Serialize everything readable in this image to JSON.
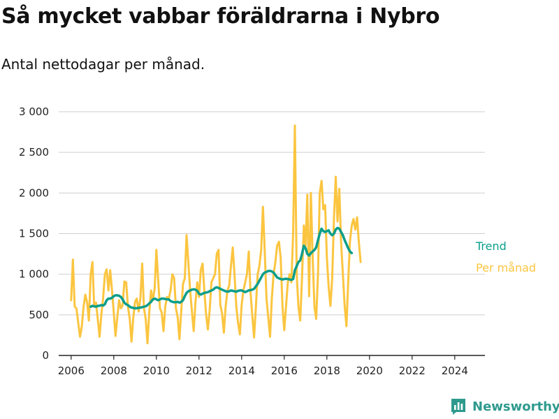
{
  "title": "Så mycket vabbar föräldrarna i Nybro",
  "subtitle": "Antal nettodagar per månad.",
  "brand": {
    "name": "Newsworthy",
    "icon": "newsworthy-logo-icon",
    "color": "#2e9a8e"
  },
  "chart_data": {
    "type": "line",
    "x_start": "2006-01",
    "x_step": "month",
    "xlim": [
      "2005-06",
      "2025-06"
    ],
    "xticks": [
      "2006",
      "2008",
      "2010",
      "2012",
      "2014",
      "2016",
      "2018",
      "2020",
      "2022",
      "2024"
    ],
    "ylim": [
      0,
      3000
    ],
    "yticks": [
      "0",
      "500",
      "1 000",
      "1 500",
      "2 000",
      "2 500",
      "3 000"
    ],
    "ytick_values": [
      0,
      500,
      1000,
      1500,
      2000,
      2500,
      3000
    ],
    "grid": "horizontal",
    "legend": "right",
    "series": [
      {
        "name": "Per månad",
        "color": "#fbc540",
        "start": "2006-01",
        "values": [
          680,
          1180,
          600,
          580,
          400,
          230,
          350,
          600,
          750,
          650,
          430,
          1000,
          1150,
          600,
          650,
          450,
          230,
          500,
          700,
          1000,
          1060,
          800,
          1050,
          800,
          530,
          240,
          470,
          680,
          580,
          620,
          910,
          900,
          600,
          450,
          170,
          470,
          660,
          700,
          540,
          700,
          1130,
          580,
          450,
          150,
          530,
          800,
          680,
          820,
          1300,
          940,
          580,
          530,
          300,
          600,
          720,
          700,
          800,
          1000,
          950,
          580,
          470,
          200,
          550,
          880,
          950,
          1480,
          1150,
          800,
          550,
          300,
          650,
          900,
          720,
          1050,
          1130,
          800,
          500,
          320,
          550,
          900,
          950,
          1000,
          1250,
          1300,
          620,
          520,
          280,
          600,
          800,
          860,
          1100,
          1330,
          1000,
          600,
          400,
          260,
          620,
          800,
          900,
          1000,
          1280,
          780,
          500,
          220,
          580,
          1000,
          1100,
          1300,
          1830,
          1300,
          700,
          470,
          230,
          700,
          1000,
          1150,
          1350,
          1400,
          1200,
          600,
          310,
          600,
          900,
          1000,
          900,
          1500,
          2830,
          1000,
          600,
          430,
          950,
          1600,
          1350,
          1980,
          730,
          2000,
          1200,
          600,
          450,
          1000,
          2000,
          2150,
          1800,
          1850,
          1200,
          850,
          610,
          950,
          1700,
          2200,
          1650,
          2050,
          1400,
          1000,
          620,
          360,
          900,
          1400,
          1600,
          1680,
          1550,
          1700,
          1400,
          1150
        ]
      },
      {
        "name": "Trend",
        "color": "#0b9e8a",
        "start": "2006-12",
        "values": [
          600,
          610,
          605,
          600,
          610,
          612,
          620,
          615,
          630,
          680,
          700,
          700,
          710,
          730,
          740,
          740,
          735,
          720,
          690,
          650,
          630,
          620,
          600,
          590,
          585,
          580,
          582,
          585,
          590,
          595,
          600,
          605,
          620,
          640,
          660,
          690,
          700,
          690,
          680,
          690,
          700,
          700,
          695,
          690,
          690,
          670,
          660,
          655,
          655,
          660,
          650,
          660,
          680,
          730,
          770,
          790,
          800,
          810,
          815,
          810,
          795,
          760,
          750,
          760,
          770,
          775,
          780,
          790,
          800,
          810,
          830,
          840,
          830,
          820,
          810,
          800,
          790,
          785,
          790,
          800,
          795,
          790,
          785,
          795,
          800,
          800,
          790,
          780,
          790,
          800,
          805,
          810,
          820,
          850,
          880,
          920,
          960,
          1000,
          1020,
          1030,
          1040,
          1040,
          1035,
          1020,
          990,
          960,
          950,
          940,
          935,
          940,
          945,
          940,
          935,
          930,
          940,
          1050,
          1100,
          1150,
          1170,
          1250,
          1350,
          1320,
          1250,
          1230,
          1260,
          1280,
          1300,
          1330,
          1420,
          1500,
          1560,
          1530,
          1520,
          1530,
          1540,
          1500,
          1480,
          1500,
          1550,
          1570,
          1560,
          1520,
          1480,
          1420,
          1370,
          1320,
          1280,
          1260
        ]
      }
    ]
  }
}
